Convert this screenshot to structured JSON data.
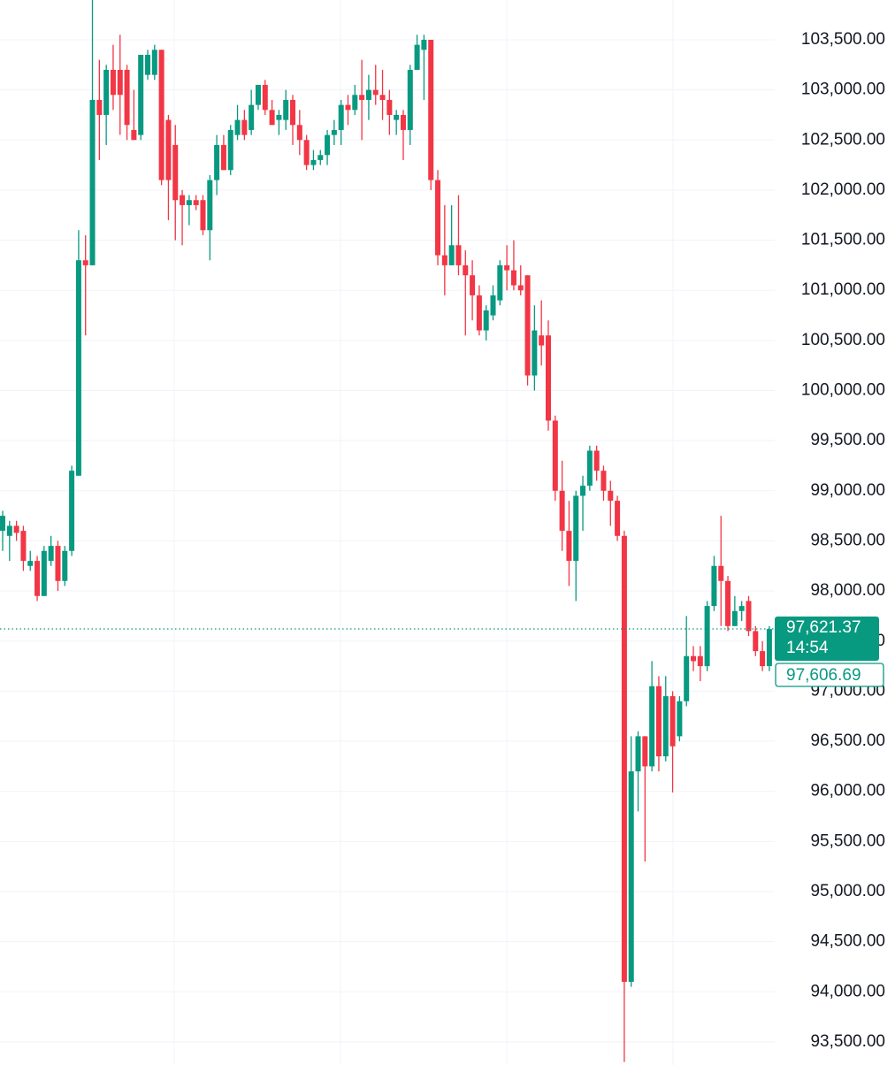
{
  "chart_data": {
    "type": "candlestick",
    "up_color": "#089981",
    "down_color": "#f23645",
    "grid": true,
    "ylim": [
      93270,
      103897
    ],
    "yticks": [
      {
        "value": 103500,
        "label": "103,500.00"
      },
      {
        "value": 103000,
        "label": "103,000.00"
      },
      {
        "value": 102500,
        "label": "102,500.00"
      },
      {
        "value": 102000,
        "label": "102,000.00"
      },
      {
        "value": 101500,
        "label": "101,500.00"
      },
      {
        "value": 101000,
        "label": "101,000.00"
      },
      {
        "value": 100500,
        "label": "100,500.00"
      },
      {
        "value": 100000,
        "label": "100,000.00"
      },
      {
        "value": 99500,
        "label": "99,500.00"
      },
      {
        "value": 99000,
        "label": "99,000.00"
      },
      {
        "value": 98500,
        "label": "98,500.00"
      },
      {
        "value": 98000,
        "label": "98,000.00"
      },
      {
        "value": 97500,
        "label": "97,500.00"
      },
      {
        "value": 97000,
        "label": "97,000.00"
      },
      {
        "value": 96500,
        "label": "96,500.00"
      },
      {
        "value": 96000,
        "label": "96,000.00"
      },
      {
        "value": 95500,
        "label": "95,500.00"
      },
      {
        "value": 95000,
        "label": "95,000.00"
      },
      {
        "value": 94500,
        "label": "94,500.00"
      },
      {
        "value": 94000,
        "label": "94,000.00"
      },
      {
        "value": 93500,
        "label": "93,500.00"
      }
    ],
    "last_price": {
      "value": 97621.37,
      "label": "97,621.37"
    },
    "countdown": "14:54",
    "mark_price": {
      "value": 97606.69,
      "label": "97,606.69"
    },
    "open": [
      98600,
      98550,
      98650,
      98600,
      98250,
      98300,
      97950,
      98300,
      98450,
      98100,
      98400,
      99150,
      101300,
      101250,
      102900,
      102750,
      103200,
      103200,
      103200,
      102600,
      102550,
      103150,
      103150,
      103400,
      102700,
      102450,
      101950,
      101850,
      101900,
      101900,
      101600,
      102100,
      102450,
      102200,
      102550,
      102700,
      102600,
      102850,
      103050,
      102800,
      102700,
      102700,
      102900,
      102650,
      102500,
      102250,
      102300,
      102350,
      102550,
      102600,
      102850,
      102800,
      102950,
      102900,
      103000,
      102950,
      102900,
      102700,
      102750,
      102600,
      103200,
      103400,
      103500,
      102100,
      101350,
      101250,
      101450,
      101250,
      101150,
      100950,
      100600,
      100750,
      100900,
      101250,
      101200,
      101050,
      101150,
      100150,
      100550,
      100550,
      99700,
      99000,
      98600,
      98300,
      98950,
      99050,
      99400,
      99200,
      99000,
      98900,
      98550,
      94100,
      96200,
      96550,
      96250,
      97050,
      96350,
      96950,
      96550,
      96900,
      97350,
      97350,
      97250,
      97850,
      98250,
      98100,
      97650,
      97800,
      97900,
      97600,
      97400,
      97250
    ],
    "high": [
      98800,
      98700,
      98700,
      98650,
      98400,
      98350,
      98450,
      98550,
      98500,
      98450,
      99250,
      101600,
      101550,
      103900,
      103300,
      103250,
      103450,
      103550,
      103250,
      103000,
      103350,
      103400,
      103450,
      103400,
      102750,
      102650,
      102000,
      101950,
      101950,
      101950,
      102150,
      102550,
      102550,
      102650,
      102850,
      102800,
      103000,
      103050,
      103100,
      102900,
      102800,
      103000,
      102950,
      102800,
      102550,
      102400,
      102400,
      102600,
      102700,
      102900,
      102950,
      103050,
      103300,
      103150,
      103250,
      103200,
      103000,
      102800,
      102800,
      103250,
      103550,
      103550,
      103500,
      102200,
      101850,
      101850,
      101950,
      101400,
      101300,
      101050,
      100850,
      101050,
      101300,
      101450,
      101500,
      101250,
      101150,
      100850,
      100900,
      100700,
      99750,
      99300,
      98900,
      99000,
      99150,
      99450,
      99450,
      99250,
      99100,
      98950,
      98600,
      96550,
      96600,
      96550,
      97300,
      97150,
      97150,
      97000,
      96950,
      97750,
      97450,
      97450,
      97900,
      98350,
      98750,
      98150,
      97950,
      97900,
      97950,
      97650,
      97500,
      97650
    ],
    "low": [
      98400,
      98300,
      98500,
      98200,
      98200,
      97900,
      97950,
      98250,
      98000,
      98050,
      98350,
      99150,
      100550,
      101250,
      102300,
      102450,
      102800,
      102550,
      102500,
      102500,
      102500,
      103100,
      103100,
      102050,
      101700,
      101500,
      101450,
      101650,
      101800,
      101550,
      101300,
      101950,
      102200,
      102150,
      102500,
      102500,
      102550,
      102800,
      102750,
      102650,
      102550,
      102600,
      102450,
      102350,
      102200,
      102200,
      102250,
      102250,
      102450,
      102450,
      102650,
      102750,
      102500,
      102700,
      102850,
      102700,
      102550,
      102550,
      102300,
      102450,
      103200,
      102900,
      102000,
      101250,
      100950,
      101250,
      101150,
      100550,
      100700,
      100550,
      100500,
      100700,
      100850,
      101000,
      101000,
      100950,
      100050,
      100000,
      100250,
      99600,
      98900,
      98400,
      98050,
      97900,
      98600,
      99000,
      99100,
      98900,
      98650,
      98500,
      93300,
      94050,
      95800,
      95300,
      96200,
      96200,
      96300,
      95990,
      96500,
      96850,
      97200,
      97100,
      97200,
      97800,
      97650,
      97600,
      97650,
      97700,
      97550,
      97350,
      97200,
      97200
    ],
    "close": [
      98750,
      98650,
      98580,
      98300,
      98300,
      97950,
      98400,
      98450,
      98100,
      98400,
      99200,
      101300,
      101250,
      102900,
      102750,
      103200,
      102950,
      102950,
      102650,
      102500,
      103350,
      103350,
      103400,
      102100,
      102100,
      101900,
      101850,
      101900,
      101850,
      101600,
      102100,
      102450,
      102200,
      102600,
      102700,
      102550,
      102850,
      103050,
      102800,
      102650,
      102750,
      102900,
      102650,
      102500,
      102250,
      102300,
      102350,
      102550,
      102600,
      102850,
      102800,
      102950,
      102900,
      103000,
      102950,
      102900,
      102750,
      102750,
      102600,
      103200,
      103450,
      103500,
      102100,
      101350,
      101250,
      101450,
      101250,
      101150,
      100950,
      100600,
      100800,
      100950,
      101250,
      101200,
      101050,
      101000,
      100150,
      100600,
      100450,
      99700,
      99000,
      98600,
      98300,
      98950,
      99050,
      99400,
      99200,
      99000,
      98900,
      98550,
      94100,
      96200,
      96550,
      96250,
      97050,
      96350,
      96950,
      96450,
      96900,
      97350,
      97300,
      97250,
      97850,
      98250,
      98100,
      97650,
      97800,
      97850,
      97600,
      97400,
      97250,
      97620
    ]
  }
}
